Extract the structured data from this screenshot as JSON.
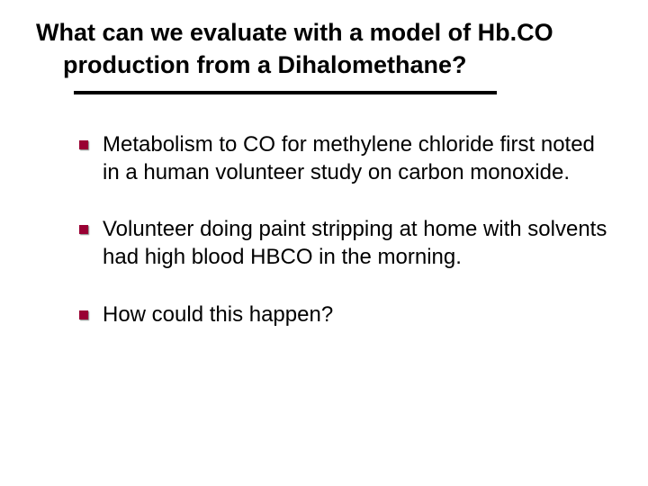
{
  "slide": {
    "title_line1": "What can we evaluate with a model of Hb.CO",
    "title_line2": "production from a Dihalomethane?",
    "bullets": [
      "Metabolism to CO for methylene chloride first noted in a human volunteer study on carbon monoxide.",
      "Volunteer doing paint stripping at home with solvents had high blood HBCO in the morning.",
      "How could this happen?"
    ]
  },
  "styles": {
    "background_color": "#ffffff",
    "text_color": "#000000",
    "bullet_color": "#990033",
    "divider_color": "#000000",
    "title_fontsize": 27,
    "body_fontsize": 24,
    "font_family": "Comic Sans MS",
    "divider_width": 470,
    "divider_thickness": 4
  }
}
